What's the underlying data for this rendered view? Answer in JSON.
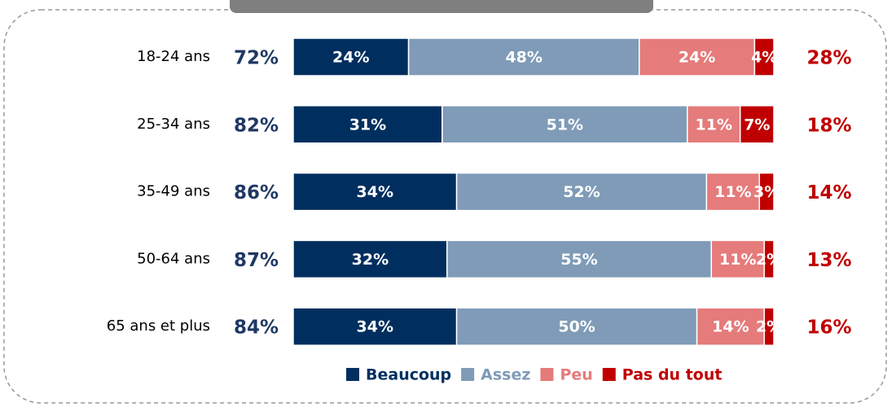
{
  "chart_data": {
    "type": "stacked-bar-horizontal",
    "categories": [
      "18-24 ans",
      "25-34 ans",
      "35-49 ans",
      "50-64 ans",
      "65 ans et plus"
    ],
    "xlim": [
      0,
      100
    ],
    "series": [
      {
        "name": "Beaucoup",
        "color": "#002f5f",
        "values": [
          24,
          31,
          34,
          32,
          34
        ],
        "value_labels": [
          "24%",
          "31%",
          "34%",
          "32%",
          "34%"
        ]
      },
      {
        "name": "Assez",
        "color": "#7f9bb7",
        "values": [
          48,
          51,
          52,
          55,
          50
        ],
        "value_labels": [
          "48%",
          "51%",
          "52%",
          "55%",
          "50%"
        ]
      },
      {
        "name": "Peu",
        "color": "#e57b7b",
        "values": [
          24,
          11,
          11,
          11,
          14
        ],
        "value_labels": [
          "24%",
          "11%",
          "11%",
          "11%",
          "14%"
        ]
      },
      {
        "name": "Pas du tout",
        "color": "#c00000",
        "values": [
          4,
          7,
          3,
          2,
          2
        ],
        "value_labels": [
          "4%",
          "7%",
          "3%",
          "2%",
          "2%"
        ]
      }
    ],
    "left_totals": {
      "color": "#1f3864",
      "values": [
        72,
        82,
        86,
        87,
        84
      ],
      "value_labels": [
        "72%",
        "82%",
        "86%",
        "87%",
        "84%"
      ]
    },
    "right_totals": {
      "color": "#c00000",
      "values": [
        28,
        18,
        14,
        13,
        16
      ],
      "value_labels": [
        "28%",
        "18%",
        "14%",
        "13%",
        "16%"
      ]
    }
  }
}
